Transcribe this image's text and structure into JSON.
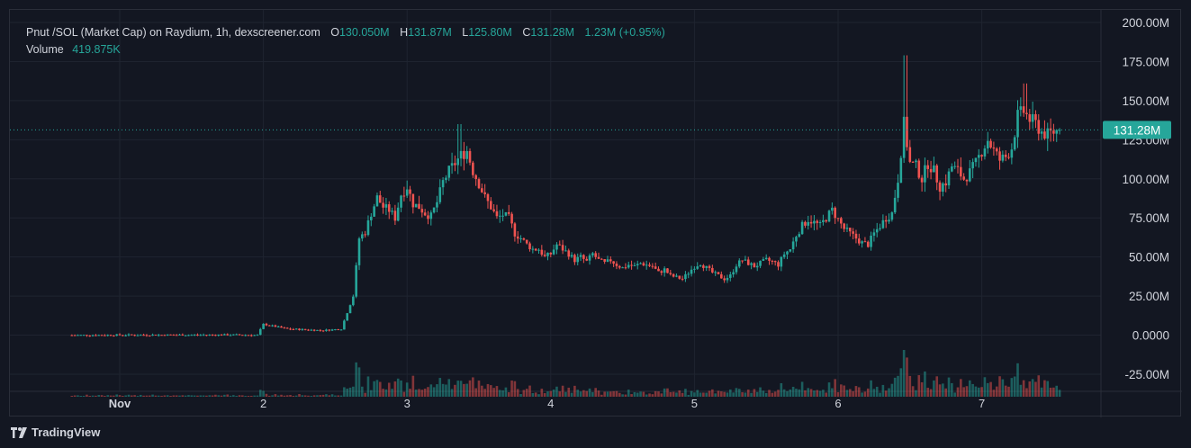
{
  "header": {
    "title": "Pnut /SOL (Market Cap) on Raydium, 1h, dexscreener.com",
    "ohlc": {
      "o_label": "O",
      "o_value": "130.050M",
      "h_label": "H",
      "h_value": "131.87M",
      "l_label": "L",
      "l_value": "125.80M",
      "c_label": "C",
      "c_value": "131.28M",
      "change": "1.23M (+0.95%)"
    },
    "volume_label": "Volume",
    "volume_value": "419.875K"
  },
  "price_tag": "131.28M",
  "footer": {
    "brand": "TradingView"
  },
  "colors": {
    "up": "#26a69a",
    "down": "#ef5350",
    "background": "#131722",
    "grid": "#1f2430"
  },
  "chart_data": {
    "type": "candlestick",
    "y_ticks": [
      "200.00M",
      "175.00M",
      "150.00M",
      "125.00M",
      "100.00M",
      "75.00M",
      "50.00M",
      "25.00M",
      "0.0000",
      "-25.00M"
    ],
    "ylim": [
      -25,
      200
    ],
    "x_ticks": [
      {
        "label": "Nov",
        "bold": true,
        "t": 0
      },
      {
        "label": "2",
        "t": 24
      },
      {
        "label": "3",
        "t": 48
      },
      {
        "label": "4",
        "t": 72
      },
      {
        "label": "5",
        "t": 96
      },
      {
        "label": "6",
        "t": 120
      },
      {
        "label": "7",
        "t": 144
      }
    ],
    "last_price": 131.28,
    "anchors": [
      [
        -8,
        0
      ],
      [
        0,
        0.1
      ],
      [
        20,
        0.2
      ],
      [
        23,
        0
      ],
      [
        24,
        7
      ],
      [
        28,
        4
      ],
      [
        34,
        3
      ],
      [
        37,
        4
      ],
      [
        39,
        25
      ],
      [
        40,
        62
      ],
      [
        41,
        66
      ],
      [
        42,
        78
      ],
      [
        43,
        88
      ],
      [
        44,
        82
      ],
      [
        45,
        80
      ],
      [
        46,
        75
      ],
      [
        47,
        90
      ],
      [
        48,
        95
      ],
      [
        49,
        84
      ],
      [
        50,
        82
      ],
      [
        51,
        78
      ],
      [
        52,
        76
      ],
      [
        53,
        85
      ],
      [
        54,
        98
      ],
      [
        55,
        105
      ],
      [
        56,
        110
      ],
      [
        57,
        115
      ],
      [
        58,
        118
      ],
      [
        59,
        105
      ],
      [
        60,
        97
      ],
      [
        61,
        88
      ],
      [
        62,
        82
      ],
      [
        63,
        75
      ],
      [
        64,
        77
      ],
      [
        65,
        75
      ],
      [
        66,
        65
      ],
      [
        67,
        62
      ],
      [
        68,
        58
      ],
      [
        69,
        55
      ],
      [
        70,
        55
      ],
      [
        71,
        50
      ],
      [
        72,
        52
      ],
      [
        73,
        58
      ],
      [
        74,
        55
      ],
      [
        75,
        52
      ],
      [
        76,
        48
      ],
      [
        77,
        50
      ],
      [
        78,
        47
      ],
      [
        79,
        52
      ],
      [
        80,
        48
      ],
      [
        81,
        46
      ],
      [
        82,
        48
      ],
      [
        83,
        45
      ],
      [
        84,
        43
      ],
      [
        85,
        45
      ],
      [
        86,
        44
      ],
      [
        87,
        46
      ],
      [
        88,
        45
      ],
      [
        89,
        44
      ],
      [
        90,
        40
      ],
      [
        91,
        42
      ],
      [
        92,
        38
      ],
      [
        93,
        37
      ],
      [
        94,
        36
      ],
      [
        95,
        40
      ],
      [
        96,
        44
      ],
      [
        97,
        46
      ],
      [
        98,
        43
      ],
      [
        99,
        40
      ],
      [
        100,
        38
      ],
      [
        101,
        36
      ],
      [
        102,
        38
      ],
      [
        103,
        45
      ],
      [
        104,
        48
      ],
      [
        105,
        46
      ],
      [
        106,
        44
      ],
      [
        107,
        46
      ],
      [
        108,
        48
      ],
      [
        109,
        47
      ],
      [
        110,
        45
      ],
      [
        111,
        52
      ],
      [
        112,
        55
      ],
      [
        113,
        64
      ],
      [
        114,
        70
      ],
      [
        115,
        74
      ],
      [
        116,
        72
      ],
      [
        117,
        70
      ],
      [
        118,
        75
      ],
      [
        119,
        80
      ],
      [
        120,
        74
      ],
      [
        121,
        68
      ],
      [
        122,
        65
      ],
      [
        123,
        62
      ],
      [
        124,
        59
      ],
      [
        125,
        58
      ],
      [
        126,
        65
      ],
      [
        127,
        70
      ],
      [
        128,
        75
      ],
      [
        129,
        78
      ],
      [
        130,
        100
      ],
      [
        131,
        135
      ],
      [
        132,
        110
      ],
      [
        133,
        108
      ],
      [
        134,
        100
      ],
      [
        135,
        110
      ],
      [
        136,
        105
      ],
      [
        137,
        95
      ],
      [
        138,
        98
      ],
      [
        139,
        108
      ],
      [
        140,
        105
      ],
      [
        141,
        100
      ],
      [
        142,
        104
      ],
      [
        143,
        110
      ],
      [
        144,
        118
      ],
      [
        145,
        125
      ],
      [
        146,
        118
      ],
      [
        147,
        112
      ],
      [
        148,
        114
      ],
      [
        149,
        120
      ],
      [
        150,
        140
      ],
      [
        151,
        143
      ],
      [
        152,
        138
      ],
      [
        153,
        135
      ],
      [
        154,
        130
      ],
      [
        155,
        128
      ],
      [
        156,
        130
      ],
      [
        157,
        131.28
      ]
    ],
    "start_t": -8,
    "end_t": 157
  }
}
